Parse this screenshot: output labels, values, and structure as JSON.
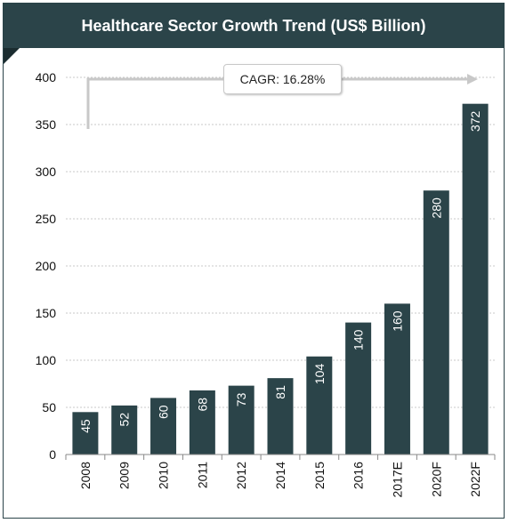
{
  "chart_data": {
    "type": "bar",
    "title": "Healthcare Sector Growth Trend (US$ Billion)",
    "categories": [
      "2008",
      "2009",
      "2010",
      "2011",
      "2012",
      "2014",
      "2015",
      "2016",
      "2017E",
      "2020F",
      "2022F"
    ],
    "values": [
      45,
      52,
      60,
      68,
      73,
      81,
      104,
      140,
      160,
      280,
      372
    ],
    "ylim": [
      0,
      400
    ],
    "yticks": [
      0,
      50,
      100,
      150,
      200,
      250,
      300,
      350,
      400
    ],
    "grid": true,
    "annotation": "CAGR: 16.28%",
    "colors": {
      "bar": "#2b4449",
      "header": "#2b4449",
      "arrow": "#c8c8c8"
    }
  }
}
